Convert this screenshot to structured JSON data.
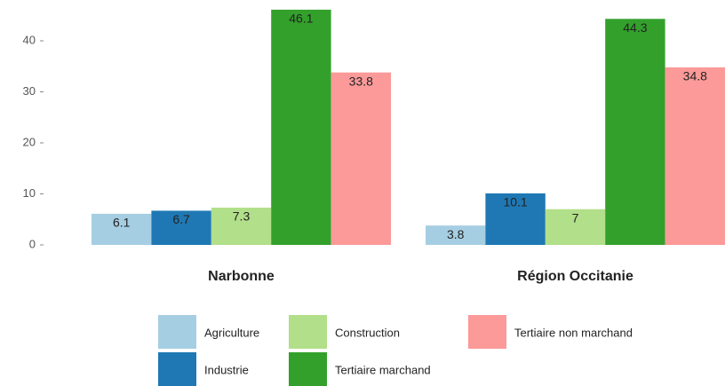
{
  "chart_data": {
    "type": "bar",
    "categories": [
      "Narbonne",
      "Région Occitanie"
    ],
    "series": [
      {
        "name": "Agriculture",
        "color": "#a6cee3",
        "values": [
          6.1,
          3.8
        ]
      },
      {
        "name": "Industrie",
        "color": "#1f78b4",
        "values": [
          6.7,
          10.1
        ]
      },
      {
        "name": "Construction",
        "color": "#b2df8a",
        "values": [
          7.3,
          7
        ]
      },
      {
        "name": "Tertiaire marchand",
        "color": "#33a02c",
        "values": [
          46.1,
          44.3
        ]
      },
      {
        "name": "Tertiaire non marchand",
        "color": "#fb9a99",
        "values": [
          33.8,
          34.8
        ]
      }
    ],
    "ylim": [
      0,
      48
    ],
    "yticks": [
      0,
      10,
      20,
      30,
      40
    ],
    "grid": false
  }
}
